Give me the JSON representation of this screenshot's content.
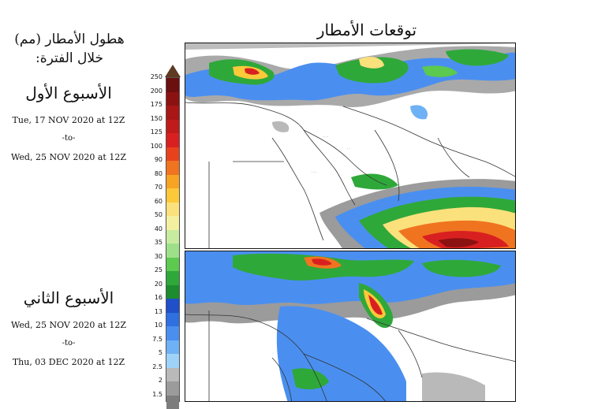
{
  "title": "توقعات الأمطار",
  "legend_title_line1": "هطول الأمطار (مم)",
  "legend_title_line2": "خلال الفترة:",
  "weeks": [
    {
      "title": "الأسبوع الأول",
      "from": "Tue, 17 NOV 2020 at 12Z",
      "to_label": "-to-",
      "to": "Wed, 25 NOV 2020 at 12Z"
    },
    {
      "title": "الأسبوع الثاني",
      "from": "Wed, 25 NOV 2020 at 12Z",
      "to_label": "-to-",
      "to": "Thu, 03 DEC 2020 at 12Z"
    }
  ],
  "colorbar": {
    "labels": [
      "250",
      "200",
      "175",
      "150",
      "125",
      "100",
      "90",
      "80",
      "70",
      "60",
      "50",
      "40",
      "35",
      "30",
      "25",
      "20",
      "16",
      "13",
      "10",
      "7.5",
      "5",
      "2.5",
      "2",
      "1.5"
    ],
    "colors": [
      "#6b0f0f",
      "#8c1212",
      "#a81616",
      "#c01b1b",
      "#d92020",
      "#e8421d",
      "#f07420",
      "#f7a323",
      "#fbc93a",
      "#fbe17c",
      "#f3f0a0",
      "#c7ec9f",
      "#9ee08a",
      "#5cc94f",
      "#2fa83a",
      "#1c8c2e",
      "#1f4fc9",
      "#2f6fe0",
      "#4a8ff0",
      "#6fb1f5",
      "#9fd2f8",
      "#b9b9b9",
      "#9b9b9b",
      "#7d7d7d"
    ]
  }
}
